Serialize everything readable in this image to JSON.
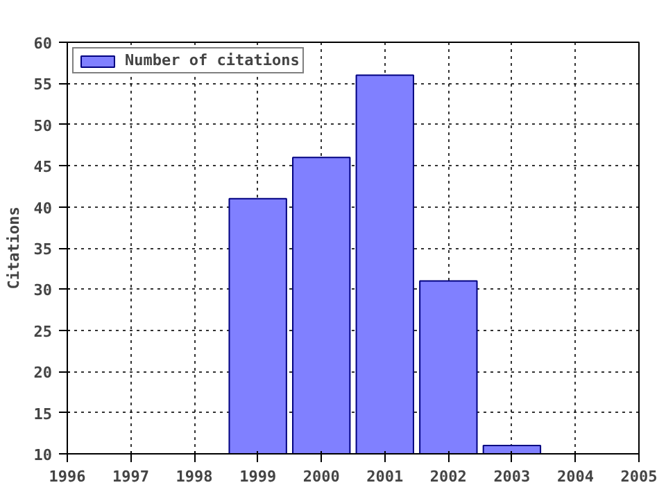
{
  "chart_data": {
    "type": "bar",
    "ylabel": "Citations",
    "x": [
      1999,
      2000,
      2001,
      2002,
      2003
    ],
    "series": [
      {
        "name": "Number of citations",
        "color": "#8080ff",
        "values": [
          41,
          46,
          56,
          31,
          11
        ]
      }
    ],
    "xlim": [
      1996,
      2005
    ],
    "xticks": [
      1996,
      1997,
      1998,
      1999,
      2000,
      2001,
      2002,
      2003,
      2004,
      2005
    ],
    "ylim": [
      10,
      60
    ],
    "yticks": [
      10,
      15,
      20,
      25,
      30,
      35,
      40,
      45,
      50,
      55,
      60
    ],
    "grid": true,
    "legend": "top left"
  }
}
